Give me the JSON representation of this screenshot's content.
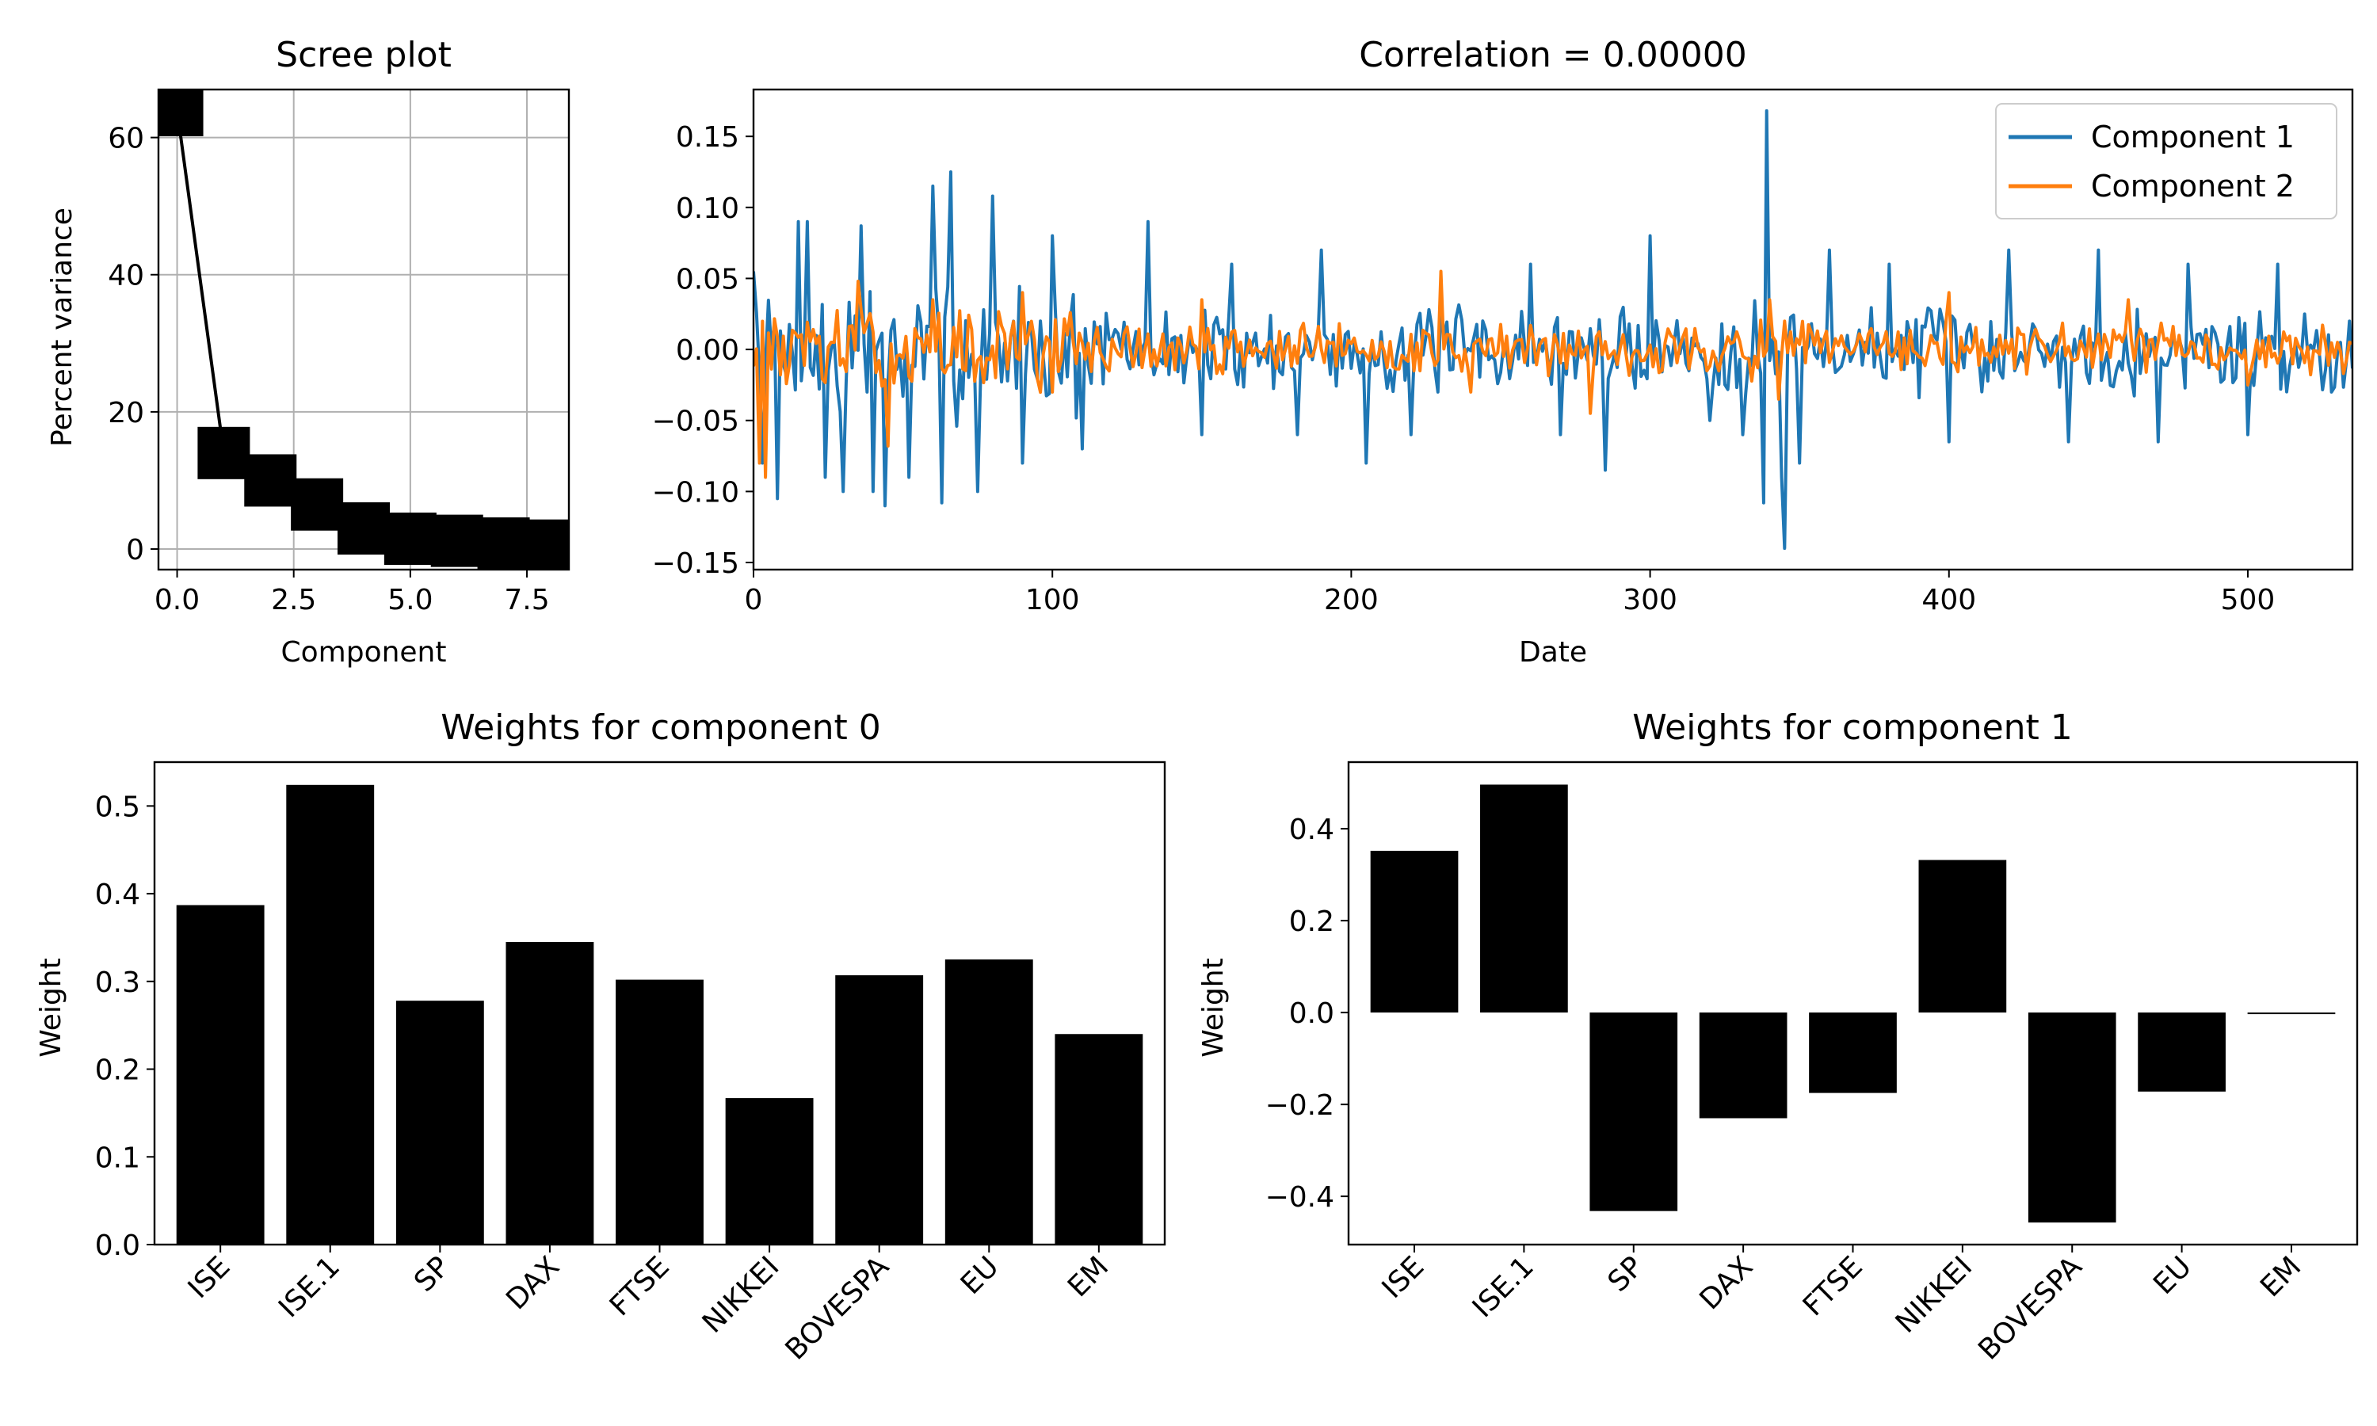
{
  "chart_data": [
    {
      "id": "scree",
      "type": "line",
      "title": "Scree plot",
      "xlabel": "Component",
      "ylabel": "Percent variance",
      "xlim": [
        -0.4,
        8.4
      ],
      "ylim": [
        -3,
        67
      ],
      "xticks": [
        0.0,
        2.5,
        5.0,
        7.5
      ],
      "xtick_labels": [
        "0.0",
        "2.5",
        "5.0",
        "7.5"
      ],
      "yticks": [
        0,
        20,
        40,
        60
      ],
      "ytick_labels": [
        "0",
        "20",
        "40",
        "60"
      ],
      "grid": true,
      "marker": "square",
      "color": "#000000",
      "x": [
        0,
        1,
        2,
        3,
        4,
        5,
        6,
        7,
        8
      ],
      "values": [
        64,
        14,
        10,
        6.5,
        3,
        1.5,
        1.2,
        0.8,
        0.5
      ]
    },
    {
      "id": "timeseries",
      "type": "line",
      "title": "Correlation = 0.00000",
      "xlabel": "Date",
      "ylabel": "",
      "xlim": [
        0,
        535
      ],
      "ylim": [
        -0.155,
        0.183
      ],
      "xticks": [
        0,
        100,
        200,
        300,
        400,
        500
      ],
      "xtick_labels": [
        "0",
        "100",
        "200",
        "300",
        "400",
        "500"
      ],
      "yticks": [
        -0.15,
        -0.1,
        -0.05,
        0.0,
        0.05,
        0.1,
        0.15
      ],
      "ytick_labels": [
        "−0.15",
        "−0.10",
        "−0.05",
        "0.00",
        "0.05",
        "0.10",
        "0.15"
      ],
      "legend_position": "top-right",
      "series": [
        {
          "name": "Component 1",
          "color": "#1f77b4",
          "n": 536,
          "spikes": [
            [
              0,
              0.055
            ],
            [
              3,
              -0.08
            ],
            [
              8,
              -0.105
            ],
            [
              15,
              0.09
            ],
            [
              18,
              0.09
            ],
            [
              24,
              -0.09
            ],
            [
              30,
              -0.1
            ],
            [
              36,
              0.087
            ],
            [
              40,
              -0.1
            ],
            [
              44,
              -0.11
            ],
            [
              52,
              -0.09
            ],
            [
              60,
              0.115
            ],
            [
              63,
              -0.108
            ],
            [
              66,
              0.125
            ],
            [
              75,
              -0.1
            ],
            [
              80,
              0.108
            ],
            [
              90,
              -0.08
            ],
            [
              100,
              0.08
            ],
            [
              110,
              -0.07
            ],
            [
              132,
              0.09
            ],
            [
              150,
              -0.06
            ],
            [
              160,
              0.06
            ],
            [
              182,
              -0.06
            ],
            [
              190,
              0.07
            ],
            [
              205,
              -0.08
            ],
            [
              220,
              -0.06
            ],
            [
              260,
              0.06
            ],
            [
              270,
              -0.06
            ],
            [
              285,
              -0.085
            ],
            [
              300,
              0.08
            ],
            [
              320,
              -0.05
            ],
            [
              331,
              -0.06
            ],
            [
              338,
              -0.108
            ],
            [
              339,
              0.168
            ],
            [
              344,
              -0.09
            ],
            [
              345,
              -0.14
            ],
            [
              350,
              -0.08
            ],
            [
              360,
              0.07
            ],
            [
              380,
              0.06
            ],
            [
              400,
              -0.065
            ],
            [
              420,
              0.07
            ],
            [
              440,
              -0.065
            ],
            [
              450,
              0.07
            ],
            [
              470,
              -0.065
            ],
            [
              480,
              0.06
            ],
            [
              500,
              -0.06
            ],
            [
              510,
              0.06
            ],
            [
              528,
              -0.03
            ]
          ],
          "noise_amplitude": 0.022,
          "seed": 7
        },
        {
          "name": "Component 2",
          "color": "#ff7f0e",
          "n": 536,
          "spikes": [
            [
              2,
              -0.08
            ],
            [
              4,
              -0.09
            ],
            [
              35,
              0.048
            ],
            [
              45,
              -0.068
            ],
            [
              60,
              0.035
            ],
            [
              90,
              0.04
            ],
            [
              100,
              -0.03
            ],
            [
              150,
              0.035
            ],
            [
              230,
              0.055
            ],
            [
              240,
              -0.03
            ],
            [
              280,
              -0.045
            ],
            [
              340,
              0.035
            ],
            [
              343,
              -0.035
            ],
            [
              400,
              0.04
            ],
            [
              460,
              0.035
            ],
            [
              500,
              -0.025
            ]
          ],
          "noise_amplitude": 0.013,
          "seed": 13
        }
      ]
    },
    {
      "id": "weights0",
      "type": "bar",
      "title": "Weights for component 0",
      "xlabel": "",
      "ylabel": "Weight",
      "ylim": [
        0,
        0.55
      ],
      "yticks": [
        0.0,
        0.1,
        0.2,
        0.3,
        0.4,
        0.5
      ],
      "ytick_labels": [
        "0.0",
        "0.1",
        "0.2",
        "0.3",
        "0.4",
        "0.5"
      ],
      "color": "#000000",
      "categories": [
        "ISE",
        "ISE.1",
        "SP",
        "DAX",
        "FTSE",
        "NIKKEI",
        "BOVESPA",
        "EU",
        "EM"
      ],
      "values": [
        0.387,
        0.524,
        0.278,
        0.345,
        0.302,
        0.167,
        0.307,
        0.325,
        0.24
      ]
    },
    {
      "id": "weights1",
      "type": "bar",
      "title": "Weights for component 1",
      "xlabel": "",
      "ylabel": "Weight",
      "ylim": [
        -0.505,
        0.545
      ],
      "yticks": [
        -0.4,
        -0.2,
        0.0,
        0.2,
        0.4
      ],
      "ytick_labels": [
        "−0.4",
        "−0.2",
        "0.0",
        "0.2",
        "0.4"
      ],
      "color": "#000000",
      "categories": [
        "ISE",
        "ISE.1",
        "SP",
        "DAX",
        "FTSE",
        "NIKKEI",
        "BOVESPA",
        "EU",
        "EM"
      ],
      "values": [
        0.352,
        0.496,
        -0.432,
        -0.23,
        -0.175,
        0.332,
        -0.457,
        -0.172,
        -0.002
      ]
    }
  ]
}
